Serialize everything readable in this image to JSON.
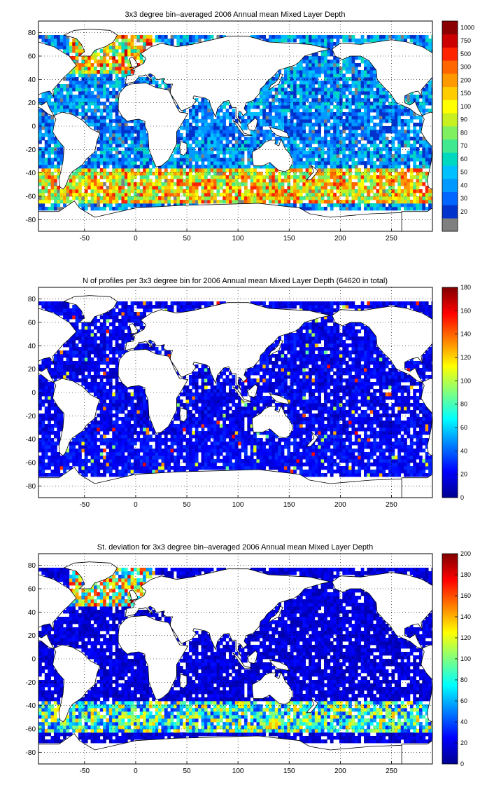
{
  "figure": {
    "panels": [
      {
        "title": "3x3 degree bin–averaged 2006 Annual mean Mixed Layer Depth",
        "colorbar": {
          "type": "discrete",
          "labels": [
            "20",
            "30",
            "40",
            "50",
            "60",
            "70",
            "80",
            "90",
            "100",
            "150",
            "200",
            "300",
            "500",
            "750",
            "1000"
          ],
          "colors": [
            "#7f7f7f",
            "#0033cc",
            "#0066ff",
            "#0099ff",
            "#00c0ff",
            "#00d8c0",
            "#40e890",
            "#80f060",
            "#c8f020",
            "#ffff00",
            "#ffcc00",
            "#ff9900",
            "#ff6600",
            "#ff2200",
            "#cc0000",
            "#8b0000"
          ]
        }
      },
      {
        "title": "N of profiles per 3x3 degree bin for 2006 Annual mean Mixed Layer Depth  (64620 in total)",
        "colorbar": {
          "type": "continuous",
          "ticks": [
            "0",
            "20",
            "40",
            "60",
            "80",
            "100",
            "120",
            "140",
            "160",
            "180"
          ],
          "range": [
            0,
            180
          ]
        }
      },
      {
        "title": "St. deviation for 3x3 degree bin–averaged 2006 Annual mean Mixed Layer Depth",
        "colorbar": {
          "type": "continuous",
          "ticks": [
            "0",
            "20",
            "40",
            "60",
            "80",
            "100",
            "120",
            "140",
            "160",
            "180",
            "200"
          ],
          "range": [
            0,
            200
          ]
        }
      }
    ],
    "axes": {
      "xticks": [
        "-50",
        "0",
        "50",
        "100",
        "150",
        "200",
        "250"
      ],
      "xvalues": [
        -50,
        0,
        50,
        100,
        150,
        200,
        250
      ],
      "yticks": [
        "80",
        "60",
        "40",
        "20",
        "0",
        "-20",
        "-40",
        "-60",
        "-80"
      ],
      "yvalues": [
        80,
        60,
        40,
        20,
        0,
        -20,
        -40,
        -60,
        -80
      ],
      "xlim": [
        -95,
        290
      ],
      "ylim": [
        -90,
        90
      ]
    },
    "colormap": "jet",
    "grid": "dotted",
    "land_color": "#ffffff",
    "coastline_color": "#000000"
  },
  "chart_data": [
    {
      "type": "heatmap",
      "title": "3x3 degree bin–averaged 2006 Annual mean Mixed Layer Depth",
      "xlim": [
        -95,
        290
      ],
      "ylim": [
        -90,
        90
      ],
      "bin_size_deg": 3,
      "color_levels": [
        20,
        30,
        40,
        50,
        60,
        70,
        80,
        90,
        100,
        150,
        200,
        300,
        500,
        750,
        1000
      ]
    },
    {
      "type": "heatmap",
      "title": "N of profiles per 3x3 degree bin for 2006 Annual mean Mixed Layer Depth  (64620 in total)",
      "xlim": [
        -95,
        290
      ],
      "ylim": [
        -90,
        90
      ],
      "bin_size_deg": 3,
      "crange": [
        0,
        180
      ],
      "total_profiles": 64620
    },
    {
      "type": "heatmap",
      "title": "St. deviation for 3x3 degree bin–averaged 2006 Annual mean Mixed Layer Depth",
      "xlim": [
        -95,
        290
      ],
      "ylim": [
        -90,
        90
      ],
      "bin_size_deg": 3,
      "crange": [
        0,
        200
      ]
    }
  ]
}
